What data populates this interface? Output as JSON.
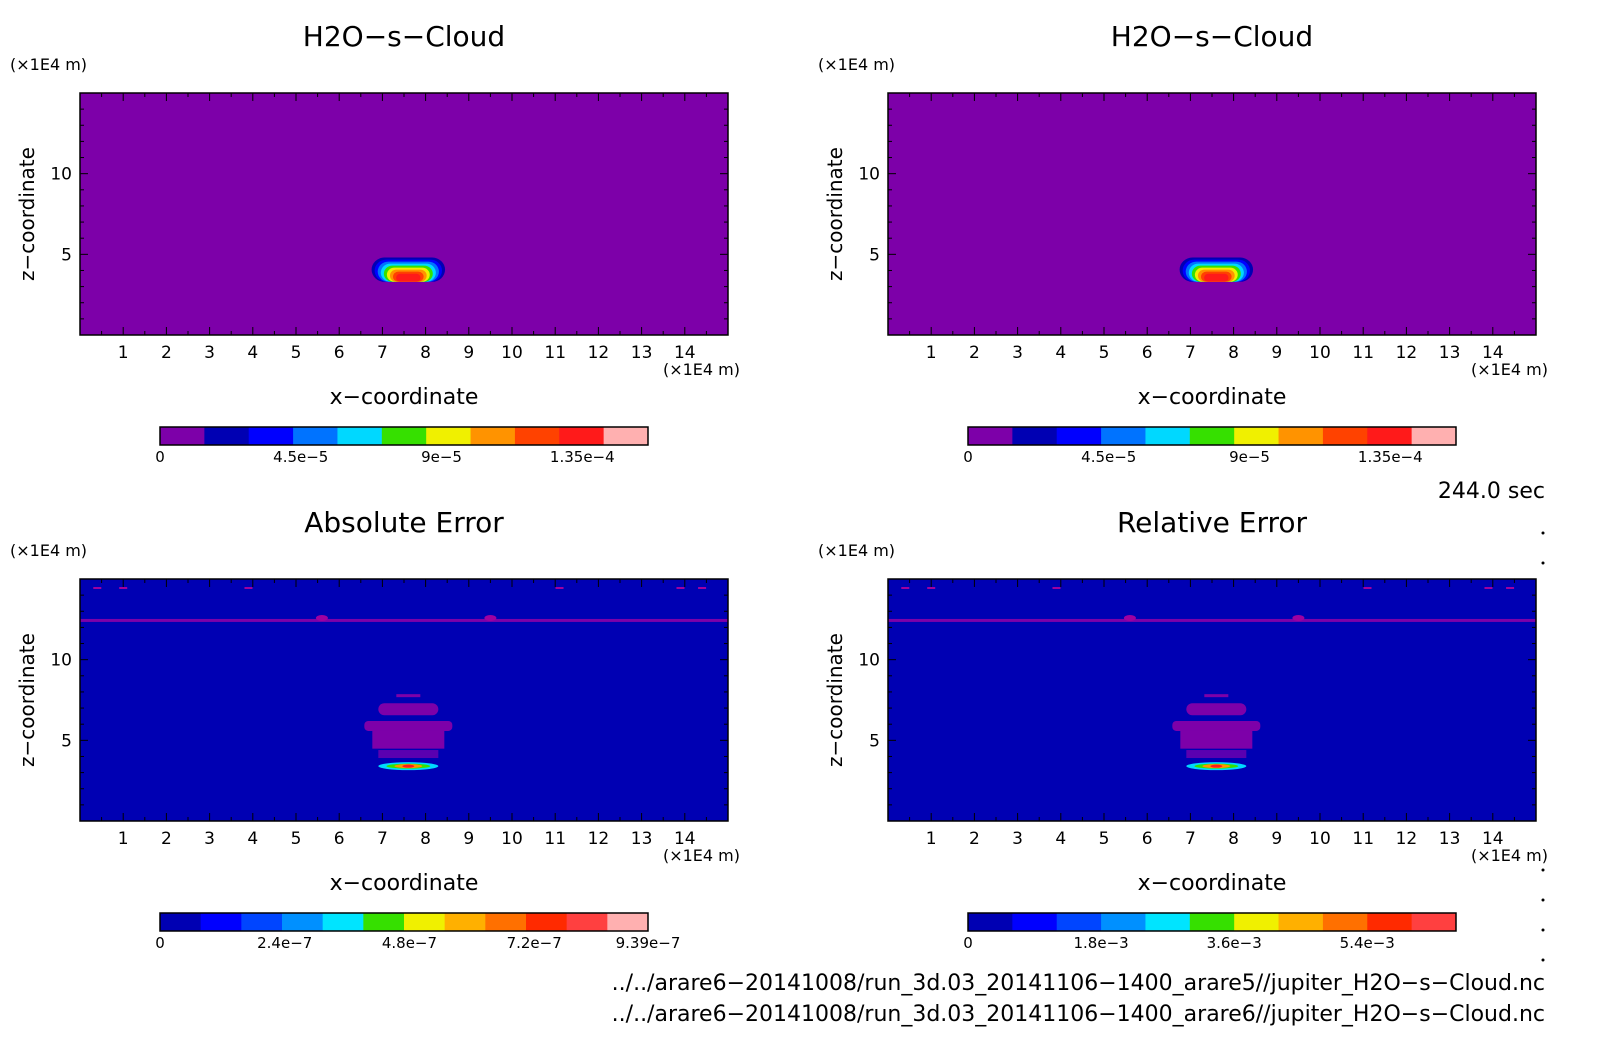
{
  "panels": [
    {
      "title": "H2O−s−Cloud",
      "ylabel": "z−coordinate",
      "xlabel": "x−coordinate",
      "y_unit": "(×1E4 m)",
      "x_unit": "(×1E4 m)",
      "x_ticks": [
        "1",
        "2",
        "3",
        "4",
        "5",
        "6",
        "7",
        "8",
        "9",
        "10",
        "11",
        "12",
        "13",
        "14"
      ],
      "y_ticks": [
        "5",
        "10"
      ],
      "colorbar": {
        "colors": [
          "#7d00a9",
          "#0000b3",
          "#0000ff",
          "#0073ff",
          "#00d8ff",
          "#36e000",
          "#f0f000",
          "#ff9300",
          "#ff4200",
          "#ff1a1a",
          "#ffb0b0"
        ],
        "tick_labels": [
          "0",
          "4.5e−5",
          "9e−5",
          "1.35e−4"
        ],
        "tick_values": [
          0,
          4.5e-05,
          9e-05,
          0.000135
        ],
        "vmax": 0.000156
      }
    },
    {
      "title": "H2O−s−Cloud",
      "ylabel": "z−coordinate",
      "xlabel": "x−coordinate",
      "y_unit": "(×1E4 m)",
      "x_unit": "(×1E4 m)",
      "x_ticks": [
        "1",
        "2",
        "3",
        "4",
        "5",
        "6",
        "7",
        "8",
        "9",
        "10",
        "11",
        "12",
        "13",
        "14"
      ],
      "y_ticks": [
        "5",
        "10"
      ],
      "colorbar": {
        "colors": [
          "#7d00a9",
          "#0000b3",
          "#0000ff",
          "#0073ff",
          "#00d8ff",
          "#36e000",
          "#f0f000",
          "#ff9300",
          "#ff4200",
          "#ff1a1a",
          "#ffb0b0"
        ],
        "tick_labels": [
          "0",
          "4.5e−5",
          "9e−5",
          "1.35e−4"
        ],
        "tick_values": [
          0,
          4.5e-05,
          9e-05,
          0.000135
        ],
        "vmax": 0.000156
      }
    },
    {
      "title": "Absolute Error",
      "ylabel": "z−coordinate",
      "xlabel": "x−coordinate",
      "y_unit": "(×1E4 m)",
      "x_unit": "(×1E4 m)",
      "x_ticks": [
        "1",
        "2",
        "3",
        "4",
        "5",
        "6",
        "7",
        "8",
        "9",
        "10",
        "11",
        "12",
        "13",
        "14"
      ],
      "y_ticks": [
        "5",
        "10"
      ],
      "colorbar": {
        "colors": [
          "#0000b3",
          "#0000ff",
          "#0045ff",
          "#0090ff",
          "#00e4ff",
          "#36e000",
          "#f0f000",
          "#ffb000",
          "#ff7000",
          "#ff2a00",
          "#ff4040",
          "#ffb0b0"
        ],
        "tick_labels": [
          "0",
          "2.4e−7",
          "4.8e−7",
          "7.2e−7",
          "9.39e−7"
        ],
        "tick_values": [
          0,
          2.4e-07,
          4.8e-07,
          7.2e-07,
          9.39e-07
        ],
        "vmax": 9.39e-07
      }
    },
    {
      "title": "Relative Error",
      "ylabel": "z−coordinate",
      "xlabel": "x−coordinate",
      "y_unit": "(×1E4 m)",
      "x_unit": "(×1E4 m)",
      "x_ticks": [
        "1",
        "2",
        "3",
        "4",
        "5",
        "6",
        "7",
        "8",
        "9",
        "10",
        "11",
        "12",
        "13",
        "14"
      ],
      "y_ticks": [
        "5",
        "10"
      ],
      "colorbar": {
        "colors": [
          "#0000b3",
          "#0000ff",
          "#0045ff",
          "#0090ff",
          "#00e4ff",
          "#36e000",
          "#f0f000",
          "#ffb000",
          "#ff7000",
          "#ff2a00",
          "#ff4040"
        ],
        "tick_labels": [
          "0",
          "1.8e−3",
          "3.6e−3",
          "5.4e−3"
        ],
        "tick_values": [
          0,
          0.0018,
          0.0036,
          0.0054
        ],
        "vmax": 0.0066
      }
    }
  ],
  "time_label": "244.0 sec",
  "file_paths": [
    "../../arare6−20141008/run_3d.03_20141106−1400_arare5//jupiter_H2O−s−Cloud.nc",
    "../../arare6−20141008/run_3d.03_20141106−1400_arare6//jupiter_H2O−s−Cloud.nc"
  ],
  "chart_data": [
    {
      "type": "heatmap",
      "title": "H2O−s−Cloud",
      "xlabel": "x−coordinate",
      "ylabel": "z−coordinate",
      "x_unit": "(×1E4 m)",
      "y_unit": "(×1E4 m)",
      "xlim": [
        0,
        15
      ],
      "ylim": [
        0,
        15
      ],
      "x_ticks": [
        1,
        2,
        3,
        4,
        5,
        6,
        7,
        8,
        9,
        10,
        11,
        12,
        13,
        14
      ],
      "y_ticks": [
        5,
        10
      ],
      "colorbar_ticks": [
        "0",
        "4.5e−5",
        "9e−5",
        "1.35e−4"
      ],
      "background_value": 0,
      "features": [
        {
          "kind": "cloud",
          "x_center": 7.6,
          "x_halfwidth": 0.85,
          "z_bottom": 3.3,
          "z_top": 4.8,
          "max_value": 0.000156
        }
      ]
    },
    {
      "type": "heatmap",
      "title": "H2O−s−Cloud",
      "xlabel": "x−coordinate",
      "ylabel": "z−coordinate",
      "x_unit": "(×1E4 m)",
      "y_unit": "(×1E4 m)",
      "xlim": [
        0,
        15
      ],
      "ylim": [
        0,
        15
      ],
      "x_ticks": [
        1,
        2,
        3,
        4,
        5,
        6,
        7,
        8,
        9,
        10,
        11,
        12,
        13,
        14
      ],
      "y_ticks": [
        5,
        10
      ],
      "colorbar_ticks": [
        "0",
        "4.5e−5",
        "9e−5",
        "1.35e−4"
      ],
      "background_value": 0,
      "features": [
        {
          "kind": "cloud",
          "x_center": 7.6,
          "x_halfwidth": 0.85,
          "z_bottom": 3.3,
          "z_top": 4.8,
          "max_value": 0.000156
        }
      ]
    },
    {
      "type": "heatmap",
      "title": "Absolute Error",
      "xlabel": "x−coordinate",
      "ylabel": "z−coordinate",
      "x_unit": "(×1E4 m)",
      "y_unit": "(×1E4 m)",
      "xlim": [
        0,
        15
      ],
      "ylim": [
        0,
        15
      ],
      "x_ticks": [
        1,
        2,
        3,
        4,
        5,
        6,
        7,
        8,
        9,
        10,
        11,
        12,
        13,
        14
      ],
      "y_ticks": [
        5,
        10
      ],
      "colorbar_ticks": [
        "0",
        "2.4e−7",
        "4.8e−7",
        "7.2e−7",
        "9.39e−7"
      ],
      "background_value": 0,
      "features": [
        {
          "kind": "band",
          "z": 12.4,
          "value": 0
        },
        {
          "kind": "cloud-edge",
          "x_center": 7.6,
          "z_bottom": 3.4,
          "z_top": 7.8,
          "max_value": 9.39e-07
        }
      ]
    },
    {
      "type": "heatmap",
      "title": "Relative Error",
      "xlabel": "x−coordinate",
      "ylabel": "z−coordinate",
      "x_unit": "(×1E4 m)",
      "y_unit": "(×1E4 m)",
      "xlim": [
        0,
        15
      ],
      "ylim": [
        0,
        15
      ],
      "x_ticks": [
        1,
        2,
        3,
        4,
        5,
        6,
        7,
        8,
        9,
        10,
        11,
        12,
        13,
        14
      ],
      "y_ticks": [
        5,
        10
      ],
      "colorbar_ticks": [
        "0",
        "1.8e−3",
        "3.6e−3",
        "5.4e−3"
      ],
      "background_value": 0,
      "features": [
        {
          "kind": "band",
          "z": 12.4,
          "value": 0
        },
        {
          "kind": "cloud-edge",
          "x_center": 7.6,
          "z_bottom": 3.4,
          "z_top": 7.8,
          "max_value": 0.0066
        }
      ]
    }
  ]
}
